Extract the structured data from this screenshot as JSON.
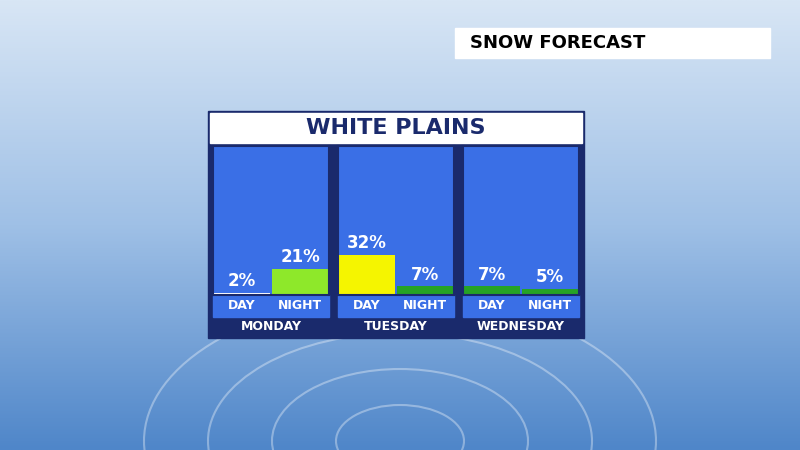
{
  "header": "SNOW FORECAST",
  "chart_data": {
    "type": "bar",
    "title": "WHITE PLAINS",
    "groups": [
      "MONDAY",
      "TUESDAY",
      "WEDNESDAY"
    ],
    "categories": [
      "DAY",
      "NIGHT",
      "DAY",
      "NIGHT",
      "DAY",
      "NIGHT"
    ],
    "values": [
      2,
      21,
      32,
      7,
      7,
      5
    ],
    "value_labels": [
      "2%",
      "21%",
      "32%",
      "7%",
      "7%",
      "5%"
    ],
    "colors": [
      "#ffffff",
      "#8ee82a",
      "#f5f500",
      "#26a326",
      "#26a326",
      "#26a326"
    ],
    "ylim": [
      0,
      120
    ],
    "data_labels": true,
    "tick_labels": "x"
  }
}
